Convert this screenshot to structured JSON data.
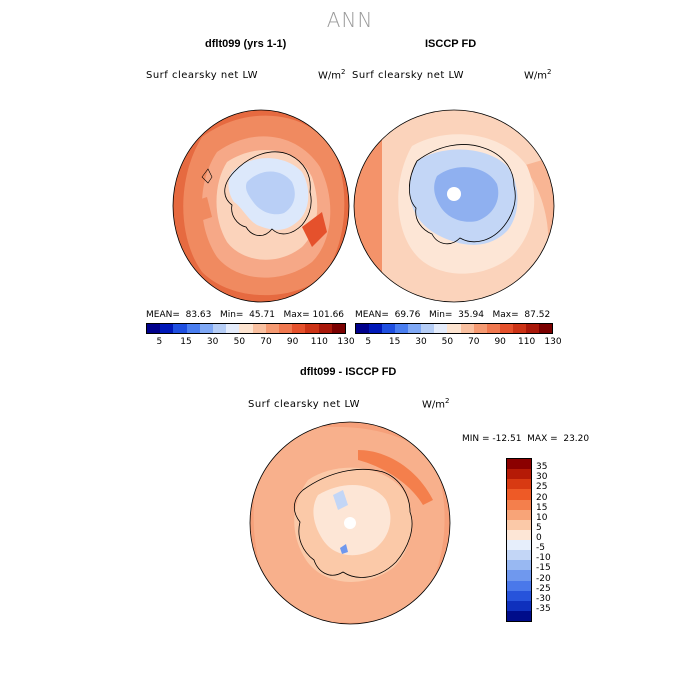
{
  "figure": {
    "title": "ANN"
  },
  "panels": [
    {
      "title": "dflt099 (yrs 1-1)",
      "variable": "Surf clearsky net LW",
      "units": "W/m",
      "stats": "MEAN=  83.63   Min=  45.71   Max= 101.66"
    },
    {
      "title": "ISCCP FD",
      "variable": "Surf clearsky net LW",
      "units": "W/m",
      "stats": "MEAN=  69.76   Min=  35.94   Max=  87.52"
    },
    {
      "title": "dflt099 - ISCCP FD",
      "variable": "Surf clearsky net LW",
      "units": "W/m",
      "stats": "MIN = -12.51  MAX =  23.20"
    }
  ],
  "units_exponent": "2",
  "top_colorbar": {
    "colors": [
      "#00008b",
      "#0018b8",
      "#1f4fe0",
      "#4a7ef0",
      "#7fa8f5",
      "#b5cdf6",
      "#e4ecfb",
      "#fde4d0",
      "#f9c0a0",
      "#f59a72",
      "#f0784f",
      "#e5512c",
      "#cc3316",
      "#a9180a",
      "#7a0000"
    ],
    "labels": [
      "5",
      "15",
      "30",
      "50",
      "70",
      "90",
      "110",
      "130"
    ]
  },
  "diff_colorbar": {
    "colors": [
      "#8b0000",
      "#b51a06",
      "#d83a12",
      "#ee5a26",
      "#f47f4c",
      "#f8a478",
      "#fbc9a8",
      "#fde6d6",
      "#e6eefb",
      "#c3d6f6",
      "#98b8f2",
      "#6f98ee",
      "#4a78ea",
      "#2753db",
      "#0f30bd",
      "#000c8a"
    ],
    "labels": [
      "35",
      "30",
      "25",
      "20",
      "15",
      "10",
      "5",
      "0",
      "-5",
      "-10",
      "-15",
      "-20",
      "-25",
      "-30",
      "-35"
    ]
  }
}
